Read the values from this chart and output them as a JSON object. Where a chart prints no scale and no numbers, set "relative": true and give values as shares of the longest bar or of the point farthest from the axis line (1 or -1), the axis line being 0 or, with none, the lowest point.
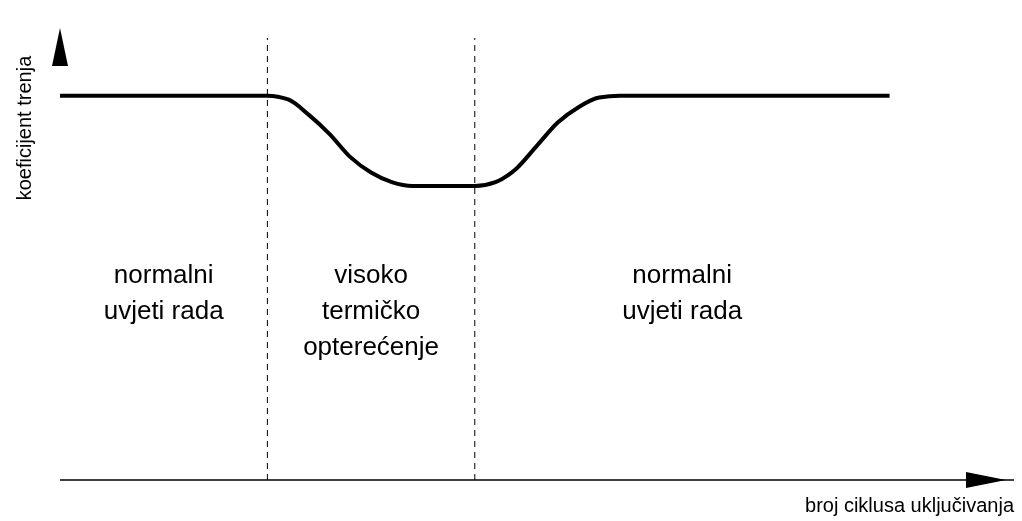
{
  "chart_data": {
    "type": "line",
    "relative": true,
    "xlabel": "broj ciklusa uključivanja",
    "ylabel": "koeficijent trenja",
    "categories": [
      null,
      null,
      null,
      null,
      null,
      null,
      null,
      null,
      null,
      null,
      null,
      null,
      null,
      null,
      null,
      null,
      null,
      null,
      null,
      null,
      null,
      null,
      null,
      null,
      null,
      null,
      null,
      null,
      null,
      null,
      null,
      null,
      null,
      null,
      null,
      null,
      null,
      null,
      null,
      null,
      null
    ],
    "series": [
      {
        "color": "#000000",
        "values": [
          1,
          1,
          1,
          1,
          1,
          1,
          1,
          1,
          1,
          1,
          1,
          0.99,
          0.95,
          0.9,
          0.84,
          0.8,
          0.775,
          0.765,
          0.765,
          0.765,
          0.765,
          0.775,
          0.81,
          0.87,
          0.93,
          0.97,
          0.995,
          1,
          1,
          1,
          1,
          1,
          1,
          1,
          1,
          1,
          1,
          1,
          1,
          1,
          1
        ]
      }
    ],
    "annotations": [
      "normalni\nuvjeti rada",
      "visoko\ntermičko\nopterećenje",
      "normalni\nuvjeti rada"
    ],
    "marker": "none",
    "line_style": "solid"
  }
}
